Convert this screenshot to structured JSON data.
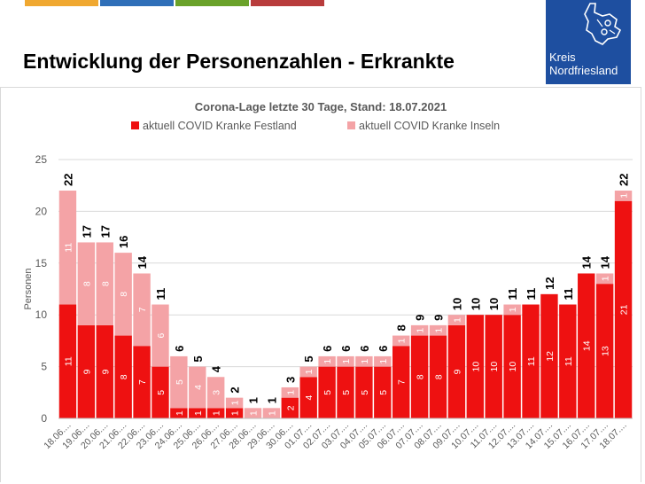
{
  "header": {
    "title": "Entwicklung der Personenzahlen - Erkrankte",
    "color_bars": [
      "#f0a830",
      "#2f6fb8",
      "#6aa22a",
      "#b83c3c"
    ]
  },
  "logo": {
    "line1": "Kreis",
    "line2": "Nordfriesland",
    "bg": "#1e4fa0"
  },
  "chart_data": {
    "type": "bar",
    "stacked": true,
    "title": "Corona-Lage letzte 30 Tage, Stand: 18.07.2021",
    "ylabel": "Personen",
    "xlabel": "",
    "ylim": [
      0,
      25
    ],
    "yticks": [
      0,
      5,
      10,
      15,
      20,
      25
    ],
    "grid": true,
    "legend_position": "top",
    "categories": [
      "18.06....",
      "19.06....",
      "20.06....",
      "21.06....",
      "22.06....",
      "23.06....",
      "24.06....",
      "25.06....",
      "26.06....",
      "27.06....",
      "28.06....",
      "29.06....",
      "30.06....",
      "01.07....",
      "02.07....",
      "03.07....",
      "04.07....",
      "05.07....",
      "06.07....",
      "07.07....",
      "08.07....",
      "09.07....",
      "10.07....",
      "11.07....",
      "12.07....",
      "13.07....",
      "14.07....",
      "15.07....",
      "16.07....",
      "17.07....",
      "18.07...."
    ],
    "series": [
      {
        "name": "aktuell COVID Kranke Festland",
        "color": "#ee1111",
        "values": [
          11,
          9,
          9,
          8,
          7,
          5,
          1,
          1,
          1,
          1,
          0,
          0,
          2,
          4,
          5,
          5,
          5,
          5,
          7,
          8,
          8,
          9,
          10,
          10,
          10,
          11,
          12,
          11,
          14,
          13,
          21
        ],
        "labels": [
          "11",
          "9",
          "9",
          "8",
          "7",
          "5",
          "1",
          "1",
          "1",
          "1",
          "",
          "",
          "2",
          "4",
          "5",
          "5",
          "5",
          "5",
          "7",
          "8",
          "8",
          "9",
          "10",
          "10",
          "10",
          "11",
          "12",
          "11",
          "14",
          "13",
          "21"
        ]
      },
      {
        "name": "aktuell COVID Kranke Inseln",
        "color": "#f4a3a6",
        "values": [
          11,
          8,
          8,
          8,
          7,
          6,
          5,
          4,
          3,
          1,
          1,
          1,
          1,
          1,
          1,
          1,
          1,
          1,
          1,
          1,
          1,
          1,
          0,
          0,
          1,
          0,
          0,
          0,
          0,
          1,
          1
        ],
        "labels": [
          "11",
          "8",
          "8",
          "8",
          "7",
          "6",
          "5",
          "4",
          "3",
          "1",
          "1",
          "1",
          "1",
          "1",
          "1",
          "1",
          "1",
          "1",
          "1",
          "1",
          "1",
          "1",
          "0",
          "0",
          "1",
          "0",
          "0",
          "0",
          "0",
          "1",
          "1"
        ]
      }
    ],
    "totals": [
      22,
      17,
      17,
      16,
      14,
      11,
      6,
      5,
      4,
      2,
      1,
      1,
      3,
      5,
      6,
      6,
      6,
      6,
      8,
      9,
      9,
      10,
      10,
      10,
      11,
      11,
      12,
      11,
      14,
      14,
      22
    ]
  }
}
